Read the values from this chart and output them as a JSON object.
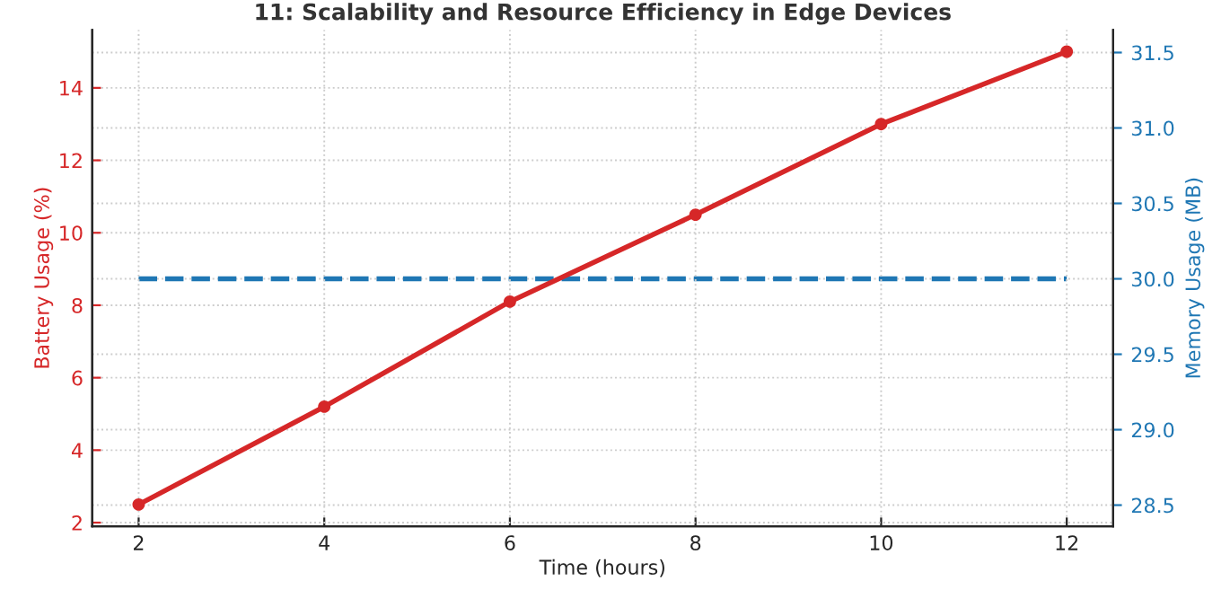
{
  "chart_data": {
    "type": "line",
    "title": "11: Scalability and Resource Efficiency in Edge Devices",
    "xlabel": "Time (hours)",
    "ylabel": "Battery Usage (%)",
    "y2label": "Memory Usage (MB)",
    "x": [
      2,
      4,
      6,
      8,
      10,
      12
    ],
    "series": [
      {
        "color": "#d62728",
        "values": [
          2.5,
          5.2,
          8.1,
          10.5,
          13.0,
          15.0
        ],
        "marker": "circle",
        "line_style": "solid"
      },
      {
        "color": "#1f77b4",
        "values": [
          30.0,
          30.0,
          30.0,
          30.0,
          30.0,
          30.0
        ],
        "axis": "y2",
        "marker": "none",
        "line_style": "dashed"
      }
    ],
    "xlim": [
      1.5,
      12.5
    ],
    "xticks": [
      2,
      4,
      6,
      8,
      10,
      12
    ],
    "ylim": [
      1.9,
      15.6
    ],
    "yticks": [
      2,
      4,
      6,
      8,
      10,
      12,
      14
    ],
    "y2lim": [
      28.36,
      31.65
    ],
    "y2ticks": [
      {
        "value": 28.5,
        "label": "28.5"
      },
      {
        "value": 29.0,
        "label": "29.0"
      },
      {
        "value": 29.5,
        "label": "29.5"
      },
      {
        "value": 30.0,
        "label": "30.0"
      },
      {
        "value": 30.5,
        "label": "30.5"
      },
      {
        "value": 31.0,
        "label": "31.0"
      },
      {
        "value": 31.5,
        "label": "31.5"
      }
    ],
    "grid": true
  }
}
